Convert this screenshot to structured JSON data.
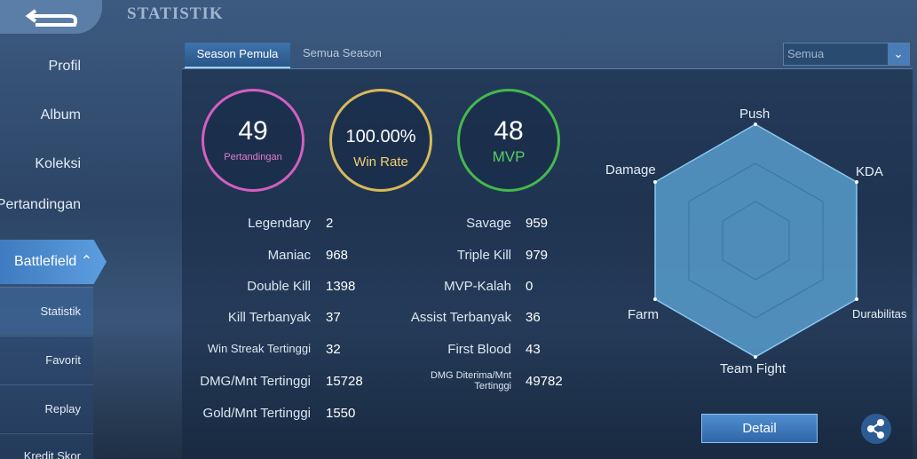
{
  "header": {
    "title": "STATISTIK"
  },
  "sidebar": {
    "items": [
      "Profil",
      "Album",
      "Koleksi",
      "Hasil Pertandingan",
      "Battlefield",
      "Statistik",
      "Favorit",
      "Replay",
      "Kredit Skor"
    ]
  },
  "tabs": [
    "Season Pemula",
    "Semua Season"
  ],
  "filter": "Semua",
  "summary": [
    {
      "value": 49,
      "label": "Pertandingan"
    },
    {
      "value": "100.00%",
      "label": "Win Rate"
    },
    {
      "value": 48,
      "label": "MVP"
    }
  ],
  "stats": {
    "left": [
      [
        "Legendary",
        2
      ],
      [
        "Maniac",
        968
      ],
      [
        "Double Kill",
        1398
      ],
      [
        "Kill Terbanyak",
        37
      ],
      [
        "Win Streak Tertinggi",
        32
      ],
      [
        "DMG/Mnt Tertinggi",
        15728
      ],
      [
        "Gold/Mnt Tertinggi",
        1550
      ]
    ],
    "right": [
      [
        "Savage",
        959
      ],
      [
        "Triple Kill",
        979
      ],
      [
        "MVP-Kalah",
        0
      ],
      [
        "Assist Terbanyak",
        36
      ],
      [
        "First Blood",
        43
      ],
      [
        "DMG Diterima/Mnt Tertinggi",
        49782
      ]
    ]
  },
  "radar": {
    "axes": [
      "Push",
      "KDA",
      "Durabilitas",
      "Team Fight",
      "Farm",
      "Damage"
    ]
  },
  "button": "Detail"
}
